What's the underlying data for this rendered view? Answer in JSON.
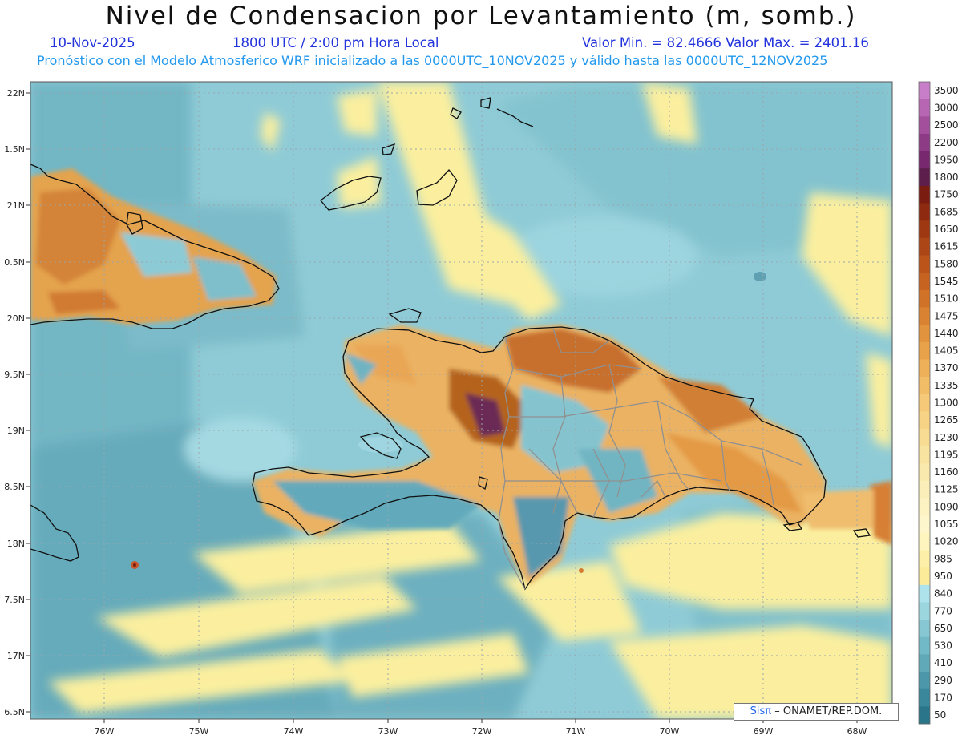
{
  "title": "Nivel de Condensacion por Levantamiento (m, somb.)",
  "date": "10-Nov-2025",
  "time": "1800 UTC / 2:00 pm Hora Local",
  "min_max": "Valor Min. = 82.4666   Valor Max. = 2401.16",
  "forecast": "Pronóstico con el Modelo Atmosferico WRF inicializado a las 0000UTC_10NOV2025 y válido hasta las  0000UTC_12NOV2025",
  "credit": {
    "logo": "Sisπ",
    "org": "– ONAMET/REP.DOM."
  },
  "lon_labels": [
    "76W",
    "75W",
    "74W",
    "73W",
    "72W",
    "71W",
    "70W",
    "69W",
    "68W"
  ],
  "lat_labels": [
    "22N",
    "1.5N",
    "21N",
    "0.5N",
    "20N",
    "9.5N",
    "19N",
    "8.5N",
    "18N",
    "7.5N",
    "17N",
    "6.5N"
  ],
  "colorbar": {
    "labels": [
      "3500",
      "3000",
      "2500",
      "2200",
      "1950",
      "1800",
      "1750",
      "1685",
      "1650",
      "1615",
      "1580",
      "1545",
      "1510",
      "1475",
      "1440",
      "1405",
      "1370",
      "1335",
      "1300",
      "1265",
      "1230",
      "1195",
      "1160",
      "1125",
      "1090",
      "1055",
      "1020",
      "985",
      "950",
      "840",
      "770",
      "650",
      "530",
      "410",
      "290",
      "170",
      "50"
    ],
    "colors": [
      "#c97ec9",
      "#b766b4",
      "#a34f9c",
      "#8e3b86",
      "#78286e",
      "#5e1e4b",
      "#7a1c10",
      "#8e2a0f",
      "#9e3812",
      "#ad4616",
      "#bb541b",
      "#c66320",
      "#d07328",
      "#d98332",
      "#e1933d",
      "#e8a24a",
      "#eeb058",
      "#f2bd67",
      "#f5c977",
      "#f7d386",
      "#f8dc94",
      "#f9e3a1",
      "#fae9ad",
      "#fbeeb8",
      "#fcf2c2",
      "#fdf5cb",
      "#fdf4be",
      "#fdefa8",
      "#fcec9a",
      "#aee3ec",
      "#9bd6df",
      "#86c7d3",
      "#72b9c7",
      "#5fa9b9",
      "#4c98aa",
      "#3a879b",
      "#2a7589"
    ]
  }
}
